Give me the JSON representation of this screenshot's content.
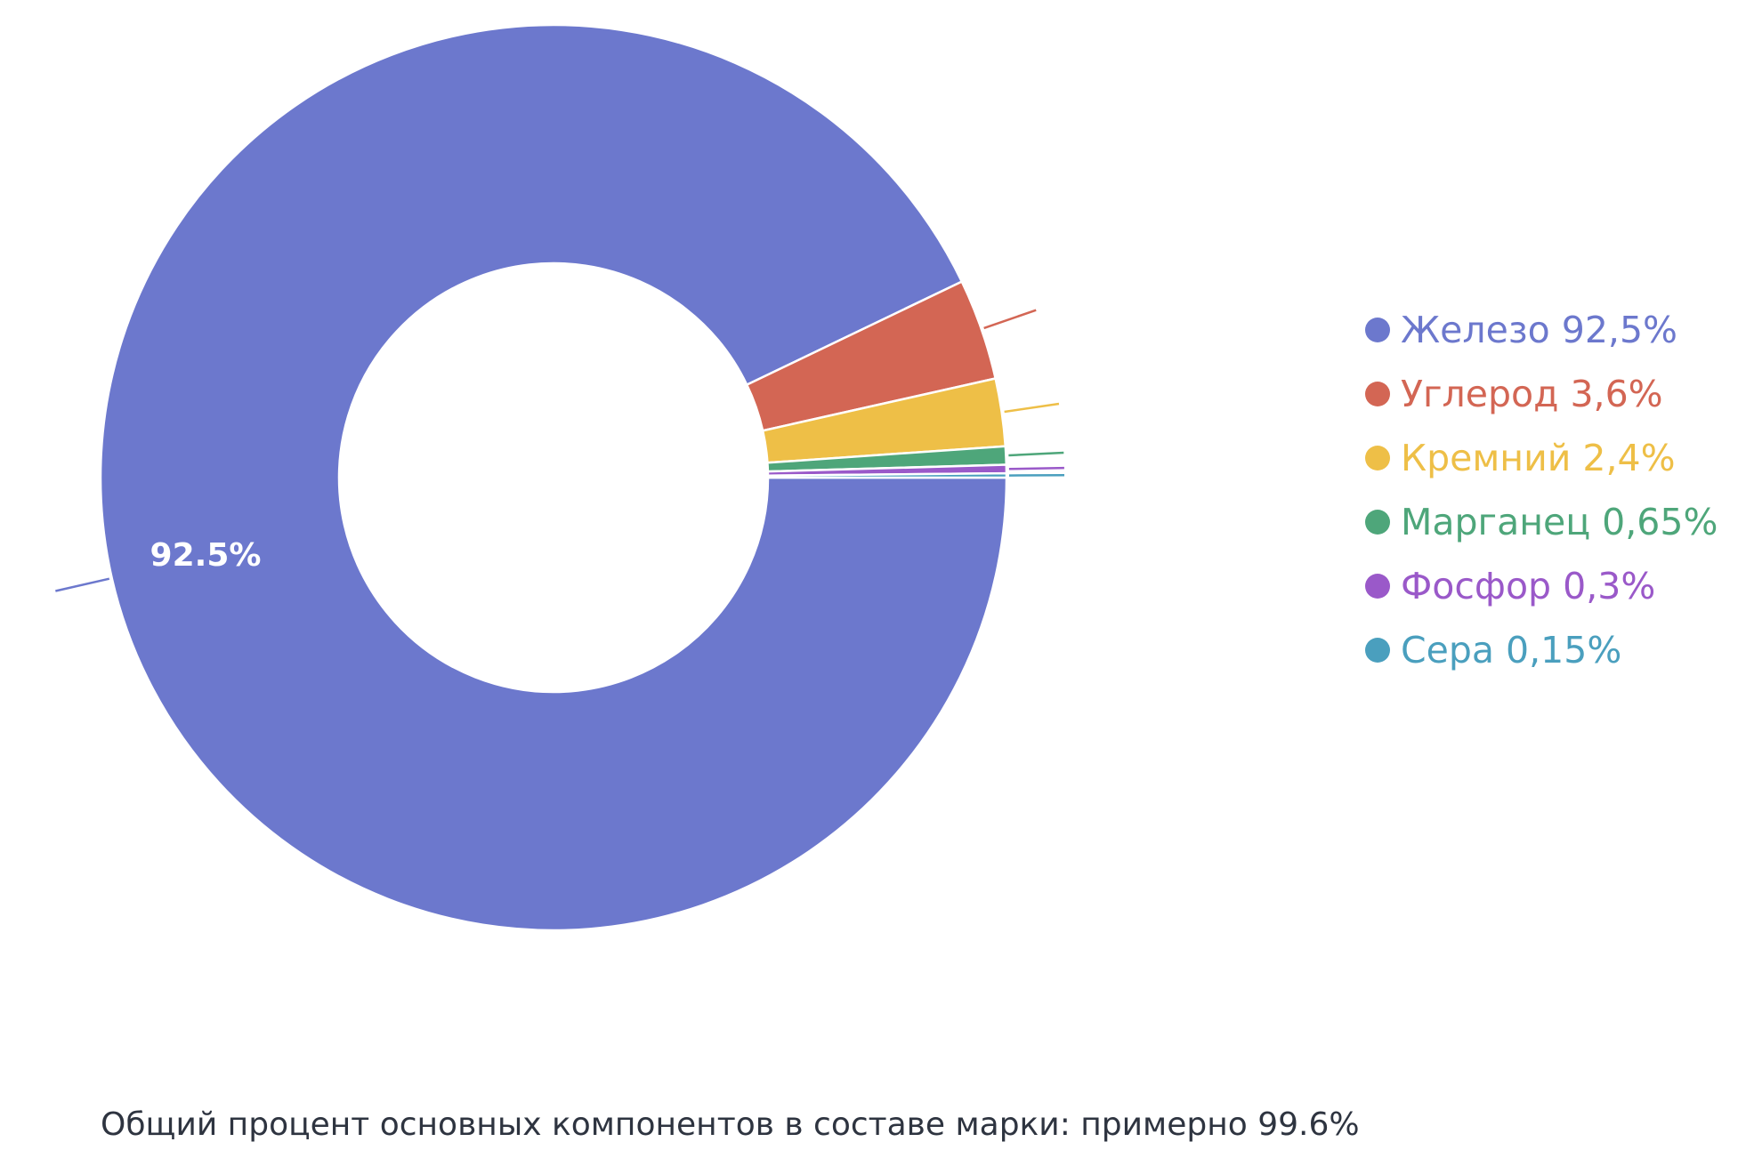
{
  "chart_data": {
    "type": "pie",
    "donut": true,
    "categories": [
      "Железо",
      "Углерод",
      "Кремний",
      "Марганец",
      "Фосфор",
      "Сера"
    ],
    "values": [
      92.5,
      3.6,
      2.4,
      0.65,
      0.3,
      0.15
    ],
    "colors": [
      "#6c78cd",
      "#d36654",
      "#eebf47",
      "#4ea67a",
      "#9a59c9",
      "#4a9fbe"
    ],
    "slice_labels": [
      "92.5%",
      "",
      "",
      "",
      "",
      ""
    ],
    "legend": {
      "position": "right",
      "entries": [
        "Железо 92,5%",
        "Углерод 3,6%",
        "Кремний 2,4%",
        "Марганец 0,65%",
        "Фосфор 0,3%",
        "Сера 0,15%"
      ]
    }
  },
  "caption": "Общий процент основных компонентов в составе марки: примерно 99.6%"
}
